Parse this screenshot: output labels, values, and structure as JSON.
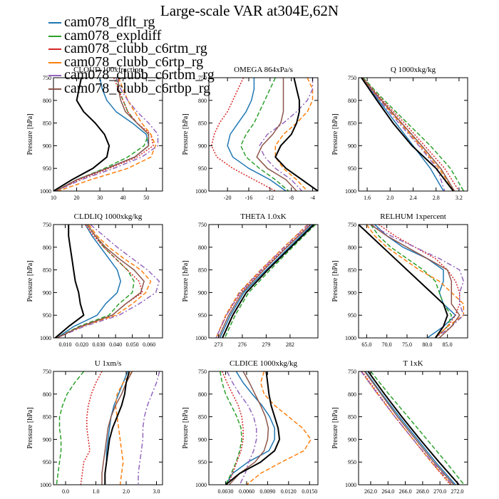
{
  "figure_title": "Large-scale VAR at304E,62N",
  "series": [
    {
      "name": "cam078_dflt_rg",
      "color": "#1f77b4",
      "dash": "solid"
    },
    {
      "name": "cam078_expldiff",
      "color": "#2ca02c",
      "dash": "dashed"
    },
    {
      "name": "cam078_clubb_c6rtm_rg",
      "color": "#d62728",
      "dash": "dotted"
    },
    {
      "name": "cam078_clubb_c6rtp_rg",
      "color": "#ff7f0e",
      "dash": "dashed"
    },
    {
      "name": "cam078_clubb_c6rtbm_rg",
      "color": "#9467bd",
      "dash": "dashdot"
    },
    {
      "name": "cam078_clubb_c6rtbp_rg",
      "color": "#8c564b",
      "dash": "solid"
    },
    {
      "name": "",
      "color": "#000000",
      "dash": "solid"
    }
  ],
  "chart_data": [
    {
      "type": "line",
      "title": "CLOUD 100xfraction",
      "ylabel": "Pressure [hPa]",
      "xlim": [
        10,
        57
      ],
      "ylim": [
        750,
        1000
      ],
      "y_reversed": true,
      "xticks": [
        10,
        20,
        30,
        40,
        50
      ],
      "xtick_labels": [
        "10",
        "20",
        "30",
        "40",
        "50"
      ],
      "yticks": [
        750,
        800,
        850,
        900,
        950,
        1000
      ],
      "ytick_labels": [
        "750",
        "800",
        "850",
        "900",
        "950",
        "1000"
      ],
      "pressure": [
        750,
        775,
        800,
        825,
        850,
        875,
        900,
        925,
        950,
        975,
        1000
      ],
      "series": [
        [
          30,
          31,
          33,
          37,
          44,
          50,
          51,
          45,
          33,
          20,
          11
        ],
        [
          37,
          38,
          40,
          42,
          46,
          51,
          49,
          42,
          32,
          20,
          11
        ],
        [
          36,
          38,
          40,
          42,
          46,
          52,
          53,
          46,
          34,
          21,
          11
        ],
        [
          38,
          40,
          42,
          45,
          48,
          52,
          54,
          52,
          42,
          26,
          12
        ],
        [
          37,
          39,
          42,
          46,
          51,
          55,
          55,
          48,
          36,
          22,
          11
        ],
        [
          38,
          38,
          39,
          41,
          46,
          51,
          51,
          45,
          33,
          20,
          11
        ],
        [
          22,
          21,
          20,
          23,
          28,
          32,
          34,
          33,
          27,
          18,
          10
        ]
      ]
    },
    {
      "type": "line",
      "title": "OMEGA  864xPa/s",
      "ylabel": "Pressure [hPa]",
      "xlim": [
        -23.5,
        -3
      ],
      "ylim": [
        750,
        1000
      ],
      "y_reversed": true,
      "xticks": [
        -20,
        -16,
        -12,
        -8,
        -4
      ],
      "xtick_labels": [
        "-20",
        "-16",
        "-12",
        "-8",
        "-4"
      ],
      "yticks": [
        750,
        800,
        850,
        900,
        950,
        1000
      ],
      "ytick_labels": [
        "750",
        "800",
        "850",
        "900",
        "950",
        "1000"
      ],
      "pressure": [
        750,
        775,
        800,
        825,
        850,
        875,
        900,
        925,
        950,
        975,
        1000
      ],
      "series": [
        [
          -15,
          -15,
          -15.5,
          -16.5,
          -18,
          -19.5,
          -20,
          -19,
          -16,
          -12,
          -9
        ],
        [
          -11,
          -12,
          -13,
          -14,
          -15,
          -16.5,
          -17.5,
          -16.5,
          -14,
          -11,
          -8.5
        ],
        [
          -17,
          -18,
          -19,
          -20,
          -21.5,
          -22.5,
          -23,
          -22,
          -19,
          -15,
          -11
        ],
        [
          -5,
          -4,
          -4,
          -5,
          -7,
          -9.5,
          -11,
          -11,
          -9.5,
          -7,
          -5
        ],
        [
          -4,
          -4,
          -5,
          -7,
          -9.5,
          -12.5,
          -14,
          -13,
          -11,
          -8,
          -6
        ],
        [
          -9.5,
          -9.5,
          -9.5,
          -9.5,
          -10,
          -11.5,
          -13.5,
          -14.5,
          -12.5,
          -9,
          -7
        ],
        [
          -7.5,
          -7,
          -6.5,
          -6.5,
          -7,
          -8,
          -10,
          -11,
          -9,
          -6,
          -3
        ]
      ]
    },
    {
      "type": "line",
      "title": "Q  1000xkg/kg",
      "ylabel": "Pressure [hPa]",
      "xlim": [
        1.45,
        3.35
      ],
      "ylim": [
        750,
        1000
      ],
      "y_reversed": true,
      "xticks": [
        1.6,
        2.0,
        2.4,
        2.8,
        3.2
      ],
      "xtick_labels": [
        "1.6",
        "2.0",
        "2.4",
        "2.8",
        "3.2"
      ],
      "yticks": [
        750,
        800,
        850,
        900,
        950,
        1000
      ],
      "ytick_labels": [
        "750",
        "800",
        "850",
        "900",
        "950",
        "1000"
      ],
      "pressure": [
        750,
        800,
        850,
        900,
        950,
        1000
      ],
      "series": [
        [
          1.51,
          1.8,
          2.1,
          2.4,
          2.7,
          2.93
        ],
        [
          1.53,
          1.9,
          2.3,
          2.7,
          3.05,
          3.28
        ],
        [
          1.52,
          1.87,
          2.25,
          2.6,
          2.95,
          3.2
        ],
        [
          1.5,
          1.83,
          2.18,
          2.52,
          2.85,
          3.12
        ],
        [
          1.51,
          1.82,
          2.15,
          2.5,
          2.82,
          2.95
        ],
        [
          1.51,
          1.85,
          2.2,
          2.55,
          2.88,
          3.12
        ],
        [
          1.5,
          1.77,
          2.05,
          2.38,
          2.8,
          3.1
        ]
      ]
    },
    {
      "type": "line",
      "title": "CLDLIQ  1000xkg/kg",
      "ylabel": "Pressure [hPa]",
      "xlim": [
        0.003,
        0.068
      ],
      "ylim": [
        750,
        1000
      ],
      "y_reversed": true,
      "xticks": [
        0.01,
        0.02,
        0.03,
        0.04,
        0.05,
        0.06
      ],
      "xtick_labels": [
        "0.010",
        "0.020",
        "0.030",
        "0.040",
        "0.050",
        "0.060"
      ],
      "yticks": [
        750,
        800,
        850,
        900,
        950,
        1000
      ],
      "ytick_labels": [
        "750",
        "800",
        "850",
        "900",
        "950",
        "1000"
      ],
      "pressure": [
        750,
        775,
        800,
        825,
        850,
        875,
        900,
        925,
        950,
        975,
        1000
      ],
      "series": [
        [
          0.022,
          0.026,
          0.031,
          0.036,
          0.041,
          0.043,
          0.041,
          0.034,
          0.029,
          0.015,
          0.005
        ],
        [
          0.023,
          0.028,
          0.033,
          0.04,
          0.047,
          0.051,
          0.05,
          0.042,
          0.036,
          0.018,
          0.005
        ],
        [
          0.022,
          0.027,
          0.033,
          0.04,
          0.047,
          0.054,
          0.056,
          0.046,
          0.038,
          0.019,
          0.005
        ],
        [
          0.024,
          0.029,
          0.036,
          0.045,
          0.055,
          0.061,
          0.058,
          0.05,
          0.04,
          0.02,
          0.005
        ],
        [
          0.025,
          0.033,
          0.041,
          0.05,
          0.059,
          0.066,
          0.064,
          0.054,
          0.042,
          0.021,
          0.005
        ],
        [
          0.023,
          0.028,
          0.034,
          0.042,
          0.051,
          0.057,
          0.055,
          0.046,
          0.038,
          0.019,
          0.005
        ],
        [
          0.012,
          0.012,
          0.013,
          0.014,
          0.015,
          0.016,
          0.018,
          0.019,
          0.021,
          0.012,
          0.004
        ]
      ]
    },
    {
      "type": "line",
      "title": "THETA  1.0xK",
      "ylabel": "Pressure [hPa]",
      "xlim": [
        271.8,
        285.5
      ],
      "ylim": [
        750,
        1000
      ],
      "y_reversed": true,
      "xticks": [
        273,
        276,
        279,
        282
      ],
      "xtick_labels": [
        "273",
        "276",
        "279",
        "282"
      ],
      "yticks": [
        750,
        800,
        850,
        900,
        950,
        1000
      ],
      "ytick_labels": [
        "750",
        "800",
        "850",
        "900",
        "950",
        "1000"
      ],
      "pressure": [
        750,
        800,
        850,
        900,
        950,
        1000
      ],
      "series": [
        [
          284.8,
          281.9,
          279.0,
          276.2,
          274.5,
          273.2
        ],
        [
          285.2,
          282.3,
          279.5,
          276.8,
          275.1,
          273.8
        ],
        [
          284.5,
          281.5,
          278.5,
          275.8,
          274.0,
          272.7
        ],
        [
          284.2,
          281.2,
          278.3,
          275.6,
          273.9,
          272.7
        ],
        [
          284.3,
          281.3,
          278.4,
          275.7,
          274.0,
          272.7
        ],
        [
          284.6,
          281.6,
          278.7,
          276.0,
          274.3,
          273.0
        ],
        [
          285.0,
          282.1,
          279.2,
          276.5,
          274.8,
          273.5
        ]
      ]
    },
    {
      "type": "line",
      "title": "RELHUM  1xpercent",
      "ylabel": "Pressure [hPa]",
      "xlim": [
        63,
        90
      ],
      "ylim": [
        750,
        1000
      ],
      "y_reversed": true,
      "xticks": [
        65.0,
        70.0,
        75.0,
        80.0,
        85.0
      ],
      "xtick_labels": [
        "65.0",
        "70.0",
        "75.0",
        "80.0",
        "85.0"
      ],
      "yticks": [
        750,
        800,
        850,
        900,
        950,
        1000
      ],
      "ytick_labels": [
        "750",
        "800",
        "850",
        "900",
        "950",
        "1000"
      ],
      "pressure": [
        750,
        775,
        800,
        825,
        850,
        875,
        900,
        925,
        950,
        975,
        1000
      ],
      "series": [
        [
          67,
          70,
          74,
          80,
          84,
          84,
          83,
          84,
          87,
          84,
          80
        ],
        [
          66,
          68,
          71,
          75,
          79,
          82,
          83,
          84,
          86,
          85,
          82
        ],
        [
          68,
          72,
          77,
          82,
          85,
          87,
          88,
          88,
          87,
          85,
          82
        ],
        [
          65,
          67,
          70,
          74,
          78,
          83,
          86,
          89,
          89,
          85,
          82
        ],
        [
          66,
          71,
          77,
          83,
          88,
          89,
          88,
          88,
          89,
          86,
          82
        ],
        [
          66,
          70,
          75,
          80,
          85,
          86,
          86,
          86,
          88,
          86,
          83
        ],
        [
          63,
          66,
          69,
          72,
          75,
          78,
          81,
          84,
          85,
          84,
          82
        ]
      ]
    },
    {
      "type": "line",
      "title": "U  1xm/s",
      "ylabel": "Pressure [hPa]",
      "xlim": [
        -0.4,
        3.2
      ],
      "ylim": [
        750,
        1000
      ],
      "y_reversed": true,
      "xticks": [
        0.0,
        1.0,
        2.0,
        3.0
      ],
      "xtick_labels": [
        "0.0",
        "1.0",
        "2.0",
        "3.0"
      ],
      "yticks": [
        750,
        800,
        850,
        900,
        950,
        1000
      ],
      "ytick_labels": [
        "750",
        "800",
        "850",
        "900",
        "950",
        "1000"
      ],
      "pressure": [
        750,
        775,
        800,
        825,
        850,
        875,
        900,
        925,
        950,
        975,
        1000
      ],
      "series": [
        [
          2.05,
          1.9,
          1.75,
          1.6,
          1.5,
          1.45,
          1.4,
          1.35,
          1.35,
          1.3,
          1.3
        ],
        [
          0.6,
          0.3,
          0.05,
          -0.1,
          -0.2,
          -0.2,
          -0.15,
          -0.15,
          -0.2,
          -0.25,
          -0.3
        ],
        [
          1.2,
          1.0,
          0.85,
          0.75,
          0.7,
          0.7,
          0.75,
          0.8,
          0.6,
          0.55,
          0.5
        ],
        [
          2.2,
          1.9,
          1.7,
          1.65,
          1.7,
          1.75,
          1.8,
          1.85,
          1.9,
          1.85,
          1.8
        ],
        [
          3.1,
          3.0,
          2.85,
          2.7,
          2.6,
          2.55,
          2.55,
          2.5,
          2.45,
          2.4,
          2.4
        ],
        [
          2.2,
          2.0,
          1.85,
          1.65,
          1.5,
          1.4,
          1.35,
          1.3,
          1.25,
          1.2,
          1.2
        ],
        [
          2.1,
          2.0,
          1.95,
          1.85,
          1.7,
          1.55,
          1.45,
          1.4,
          1.35,
          1.3,
          1.3
        ]
      ]
    },
    {
      "type": "line",
      "title": "CLDICE  1000xkg/kg",
      "ylabel": "Pressure [hPa]",
      "xlim": [
        0.0006,
        0.0162
      ],
      "ylim": [
        750,
        1000
      ],
      "y_reversed": true,
      "xticks": [
        0.003,
        0.006,
        0.009,
        0.012,
        0.015
      ],
      "xtick_labels": [
        "0.0030",
        "0.0060",
        "0.0090",
        "0.0120",
        "0.0150"
      ],
      "yticks": [
        750,
        800,
        850,
        900,
        950,
        1000
      ],
      "ytick_labels": [
        "750",
        "800",
        "850",
        "900",
        "950",
        "1000"
      ],
      "pressure": [
        750,
        775,
        800,
        825,
        850,
        875,
        900,
        925,
        950,
        975,
        1000
      ],
      "series": [
        [
          0.0045,
          0.0055,
          0.0068,
          0.0082,
          0.0093,
          0.01,
          0.01,
          0.0092,
          0.0062,
          0.004,
          0.003
        ],
        [
          0.0022,
          0.0025,
          0.003,
          0.0038,
          0.0046,
          0.0052,
          0.0053,
          0.005,
          0.0045,
          0.0038,
          0.003
        ],
        [
          0.0025,
          0.0032,
          0.004,
          0.0048,
          0.0053,
          0.0055,
          0.0055,
          0.0052,
          0.0046,
          0.004,
          0.0033
        ],
        [
          0.0085,
          0.008,
          0.0085,
          0.01,
          0.012,
          0.014,
          0.0152,
          0.0142,
          0.011,
          0.008,
          0.006
        ],
        [
          0.0032,
          0.004,
          0.005,
          0.0062,
          0.007,
          0.0074,
          0.0074,
          0.007,
          0.0063,
          0.0058,
          0.005
        ],
        [
          0.0055,
          0.0064,
          0.0072,
          0.008,
          0.0087,
          0.0091,
          0.009,
          0.0085,
          0.0072,
          0.005,
          0.0035
        ],
        [
          0.0088,
          0.009,
          0.0092,
          0.0095,
          0.01,
          0.0105,
          0.0107,
          0.01,
          0.008,
          0.005,
          0.003
        ]
      ]
    },
    {
      "type": "line",
      "title": "T  1xK",
      "ylabel": "Pressure [hPa]",
      "xlim": [
        260.6,
        273.2
      ],
      "ylim": [
        750,
        1000
      ],
      "y_reversed": true,
      "xticks": [
        262.0,
        264.0,
        266.0,
        268.0,
        270.0,
        272.0
      ],
      "xtick_labels": [
        "262.0",
        "264.0",
        "266.0",
        "268.0",
        "270.0",
        "272.0"
      ],
      "yticks": [
        750,
        800,
        850,
        900,
        950,
        1000
      ],
      "ytick_labels": [
        "750",
        "800",
        "850",
        "900",
        "950",
        "1000"
      ],
      "pressure": [
        750,
        800,
        850,
        900,
        950,
        1000
      ],
      "series": [
        [
          261.4,
          263.3,
          265.3,
          267.4,
          269.5,
          271.8
        ],
        [
          262.0,
          264.1,
          266.3,
          268.5,
          270.7,
          272.8
        ],
        [
          261.0,
          262.9,
          264.8,
          266.9,
          269.0,
          271.2
        ],
        [
          260.9,
          262.8,
          264.8,
          266.9,
          269.0,
          271.3
        ],
        [
          260.9,
          262.8,
          264.8,
          266.9,
          269.1,
          271.4
        ],
        [
          261.3,
          263.2,
          265.1,
          267.2,
          269.3,
          271.6
        ],
        [
          261.7,
          263.6,
          265.6,
          267.7,
          269.9,
          272.2
        ]
      ]
    }
  ]
}
